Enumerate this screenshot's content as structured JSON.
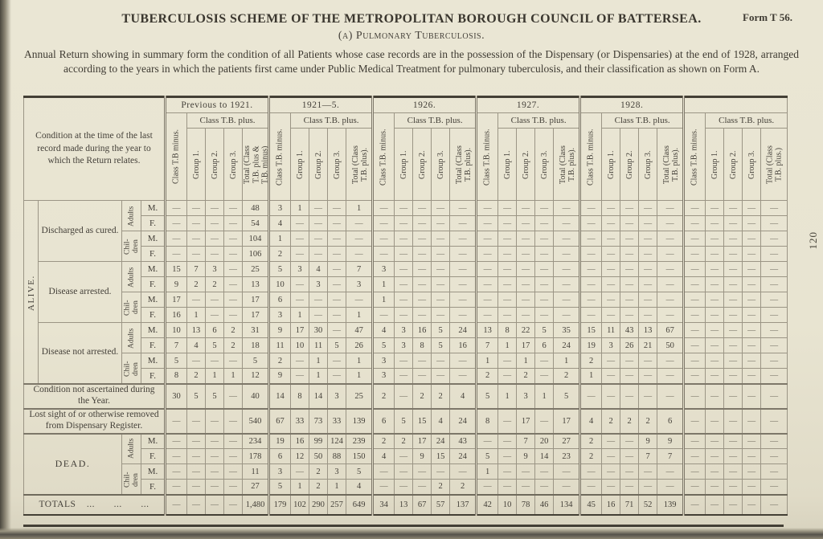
{
  "page": {
    "form_label": "Form T 56.",
    "title": "TUBERCULOSIS SCHEME OF THE METROPOLITAN BOROUGH COUNCIL OF BATTERSEA.",
    "subtitle": "(a) Pulmonary Tuberculosis.",
    "description": "Annual Return showing in summary form the condition of all Patients whose case records are in the possession of the Dispensary (or Dispensaries) at the end of 1928, arranged according to the years in which the patients first came under Public Medical Treatment for pulmonary tuberculosis, and their classification as shown on Form A.",
    "page_number": "120"
  },
  "table": {
    "row_header_title": "Condition at the time of the last record made during the year to which the Return relates.",
    "col_groups": [
      {
        "year": "Previous to 1921.",
        "minus_label": "Class T.B minus.",
        "plus_label": "Class T.B. plus.",
        "sub": [
          "Group 1.",
          "Group 2.",
          "Group 3.",
          "Total (Class\nT.B. plus &\nT.B. minus)"
        ]
      },
      {
        "year": "1921—5.",
        "minus_label": "Class T.B. minus.",
        "plus_label": "Class T.B. plus.",
        "sub": [
          "Group 1.",
          "Group 2.",
          "Group 3.",
          "Total (Class\nT.B. plus)."
        ]
      },
      {
        "year": "1926.",
        "minus_label": "Class T.B. minus.",
        "plus_label": "Class T.B. plus.",
        "sub": [
          "Group 1.",
          "Group 2.",
          "Group 3.",
          "Total (Class\nT.B. plus)."
        ]
      },
      {
        "year": "1927.",
        "minus_label": "Class T.B. minus.",
        "plus_label": "Class T.B. plus.",
        "sub": [
          "Group 1.",
          "Group 2.",
          "Group 3.",
          "Total (Class\nT.B. plus)."
        ]
      },
      {
        "year": "1928.",
        "minus_label": "Class T.B. minus.",
        "plus_label": "Class T.B. plus.",
        "sub": [
          "Group 1.",
          "Group 2.",
          "Group 3.",
          "Total (Class\nT.B. plus)."
        ]
      },
      {
        "year": "",
        "minus_label": "Class T.B. minus.",
        "plus_label": "Class T.B. plus.",
        "sub": [
          "Group 1.",
          "Group 2.",
          "Group 3.",
          "Total (Class\nT.B. plus.)"
        ]
      }
    ],
    "body": [
      {
        "type": "group",
        "section": "ALIVE.",
        "blocks": [
          {
            "condition": "Discharged as cured.",
            "rows": [
              {
                "age": "Adults",
                "sex": "M.",
                "values": [
                  "—",
                  "—",
                  "—",
                  "—",
                  "48",
                  "3",
                  "1",
                  "—",
                  "—",
                  "1",
                  "—",
                  "—",
                  "—",
                  "—",
                  "—",
                  "—",
                  "—",
                  "—",
                  "—",
                  "—",
                  "—",
                  "—",
                  "—",
                  "—",
                  "—",
                  "—",
                  "—",
                  "—",
                  "—",
                  "—"
                ]
              },
              {
                "age": "Adults",
                "sex": "F.",
                "values": [
                  "—",
                  "—",
                  "—",
                  "—",
                  "54",
                  "4",
                  "—",
                  "—",
                  "—",
                  "—",
                  "—",
                  "—",
                  "—",
                  "—",
                  "—",
                  "—",
                  "—",
                  "—",
                  "—",
                  "—",
                  "—",
                  "—",
                  "—",
                  "—",
                  "—",
                  "—",
                  "—",
                  "—",
                  "—",
                  "—"
                ]
              },
              {
                "age": "Chil-\ndren",
                "sex": "M.",
                "values": [
                  "—",
                  "—",
                  "—",
                  "—",
                  "104",
                  "1",
                  "—",
                  "—",
                  "—",
                  "—",
                  "—",
                  "—",
                  "—",
                  "—",
                  "—",
                  "—",
                  "—",
                  "—",
                  "—",
                  "—",
                  "—",
                  "—",
                  "—",
                  "—",
                  "—",
                  "—",
                  "—",
                  "—",
                  "—",
                  "—"
                ]
              },
              {
                "age": "Chil-\ndren",
                "sex": "F.",
                "values": [
                  "—",
                  "—",
                  "—",
                  "—",
                  "106",
                  "2",
                  "—",
                  "—",
                  "—",
                  "—",
                  "—",
                  "—",
                  "—",
                  "—",
                  "—",
                  "—",
                  "—",
                  "—",
                  "—",
                  "—",
                  "—",
                  "—",
                  "—",
                  "—",
                  "—",
                  "—",
                  "—",
                  "—",
                  "—",
                  "—"
                ]
              }
            ]
          },
          {
            "condition": "Disease arrested.",
            "rows": [
              {
                "age": "Adults",
                "sex": "M.",
                "values": [
                  "15",
                  "7",
                  "3",
                  "—",
                  "25",
                  "5",
                  "3",
                  "4",
                  "—",
                  "7",
                  "3",
                  "—",
                  "—",
                  "—",
                  "—",
                  "—",
                  "—",
                  "—",
                  "—",
                  "—",
                  "—",
                  "—",
                  "—",
                  "—",
                  "—",
                  "—",
                  "—",
                  "—",
                  "—",
                  "—"
                ]
              },
              {
                "age": "Adults",
                "sex": "F.",
                "values": [
                  "9",
                  "2",
                  "2",
                  "—",
                  "13",
                  "10",
                  "—",
                  "3",
                  "—",
                  "3",
                  "1",
                  "—",
                  "—",
                  "—",
                  "—",
                  "—",
                  "—",
                  "—",
                  "—",
                  "—",
                  "—",
                  "—",
                  "—",
                  "—",
                  "—",
                  "—",
                  "—",
                  "—",
                  "—",
                  "—"
                ]
              },
              {
                "age": "Chil-\ndren",
                "sex": "M.",
                "values": [
                  "17",
                  "—",
                  "—",
                  "—",
                  "17",
                  "6",
                  "—",
                  "—",
                  "—",
                  "—",
                  "1",
                  "—",
                  "—",
                  "—",
                  "—",
                  "—",
                  "—",
                  "—",
                  "—",
                  "—",
                  "—",
                  "—",
                  "—",
                  "—",
                  "—",
                  "—",
                  "—",
                  "—",
                  "—",
                  "—"
                ]
              },
              {
                "age": "Chil-\ndren",
                "sex": "F.",
                "values": [
                  "16",
                  "1",
                  "—",
                  "—",
                  "17",
                  "3",
                  "1",
                  "—",
                  "—",
                  "1",
                  "—",
                  "—",
                  "—",
                  "—",
                  "—",
                  "—",
                  "—",
                  "—",
                  "—",
                  "—",
                  "—",
                  "—",
                  "—",
                  "—",
                  "—",
                  "—",
                  "—",
                  "—",
                  "—",
                  "—"
                ]
              }
            ]
          },
          {
            "condition": "Disease not arrested.",
            "rows": [
              {
                "age": "Adults",
                "sex": "M.",
                "values": [
                  "10",
                  "13",
                  "6",
                  "2",
                  "31",
                  "9",
                  "17",
                  "30",
                  "—",
                  "47",
                  "4",
                  "3",
                  "16",
                  "5",
                  "24",
                  "13",
                  "8",
                  "22",
                  "5",
                  "35",
                  "15",
                  "11",
                  "43",
                  "13",
                  "67",
                  "—",
                  "—",
                  "—",
                  "—",
                  "—"
                ]
              },
              {
                "age": "Adults",
                "sex": "F.",
                "values": [
                  "7",
                  "4",
                  "5",
                  "2",
                  "18",
                  "11",
                  "10",
                  "11",
                  "5",
                  "26",
                  "5",
                  "3",
                  "8",
                  "5",
                  "16",
                  "7",
                  "1",
                  "17",
                  "6",
                  "24",
                  "19",
                  "3",
                  "26",
                  "21",
                  "50",
                  "—",
                  "—",
                  "—",
                  "—",
                  "—"
                ]
              },
              {
                "age": "Chil-\ndren",
                "sex": "M.",
                "values": [
                  "5",
                  "—",
                  "—",
                  "—",
                  "5",
                  "2",
                  "—",
                  "1",
                  "—",
                  "1",
                  "3",
                  "—",
                  "—",
                  "—",
                  "—",
                  "1",
                  "—",
                  "1",
                  "—",
                  "1",
                  "2",
                  "—",
                  "—",
                  "—",
                  "—",
                  "—",
                  "—",
                  "—",
                  "—",
                  "—"
                ]
              },
              {
                "age": "Chil-\ndren",
                "sex": "F.",
                "values": [
                  "8",
                  "2",
                  "1",
                  "1",
                  "12",
                  "9",
                  "—",
                  "1",
                  "—",
                  "1",
                  "3",
                  "—",
                  "—",
                  "—",
                  "—",
                  "2",
                  "—",
                  "2",
                  "—",
                  "2",
                  "1",
                  "—",
                  "—",
                  "—",
                  "—",
                  "—",
                  "—",
                  "—",
                  "—",
                  "—"
                ]
              }
            ]
          }
        ]
      },
      {
        "type": "row",
        "label": "Condition not ascertained during the Year.",
        "values": [
          "30",
          "5",
          "5",
          "—",
          "40",
          "14",
          "8",
          "14",
          "3",
          "25",
          "2",
          "—",
          "2",
          "2",
          "4",
          "5",
          "1",
          "3",
          "1",
          "5",
          "—",
          "—",
          "—",
          "—",
          "—",
          "—",
          "—",
          "—",
          "—",
          "—"
        ]
      },
      {
        "type": "row",
        "label": "Lost sight of or otherwise removed from Dispensary Register.",
        "values": [
          "—",
          "—",
          "—",
          "—",
          "540",
          "67",
          "33",
          "73",
          "33",
          "139",
          "6",
          "5",
          "15",
          "4",
          "24",
          "8",
          "—",
          "17",
          "—",
          "17",
          "4",
          "2",
          "2",
          "2",
          "6",
          "—",
          "—",
          "—",
          "—",
          "—"
        ]
      },
      {
        "type": "group2",
        "section": "DEAD.",
        "rows": [
          {
            "age": "Adults",
            "sex": "M.",
            "values": [
              "—",
              "—",
              "—",
              "—",
              "234",
              "19",
              "16",
              "99",
              "124",
              "239",
              "2",
              "2",
              "17",
              "24",
              "43",
              "—",
              "—",
              "7",
              "20",
              "27",
              "2",
              "—",
              "—",
              "9",
              "9",
              "—",
              "—",
              "—",
              "—",
              "—"
            ]
          },
          {
            "age": "Adults",
            "sex": "F.",
            "values": [
              "—",
              "—",
              "—",
              "—",
              "178",
              "6",
              "12",
              "50",
              "88",
              "150",
              "4",
              "—",
              "9",
              "15",
              "24",
              "5",
              "—",
              "9",
              "14",
              "23",
              "2",
              "—",
              "—",
              "7",
              "7",
              "—",
              "—",
              "—",
              "—",
              "—"
            ]
          },
          {
            "age": "Chil-\ndren",
            "sex": "M.",
            "values": [
              "—",
              "—",
              "—",
              "—",
              "11",
              "3",
              "—",
              "2",
              "3",
              "5",
              "—",
              "—",
              "—",
              "—",
              "—",
              "1",
              "—",
              "—",
              "—",
              "—",
              "—",
              "—",
              "—",
              "—",
              "—",
              "—",
              "—",
              "—",
              "—",
              "—"
            ]
          },
          {
            "age": "Chil-\ndren",
            "sex": "F.",
            "values": [
              "—",
              "—",
              "—",
              "—",
              "27",
              "5",
              "1",
              "2",
              "1",
              "4",
              "—",
              "—",
              "—",
              "2",
              "2",
              "—",
              "—",
              "—",
              "—",
              "—",
              "—",
              "—",
              "—",
              "—",
              "—",
              "—",
              "—",
              "—",
              "—",
              "—"
            ]
          }
        ]
      },
      {
        "type": "totals",
        "label": "TOTALS    ...       ...       ...",
        "values": [
          "—",
          "—",
          "—",
          "—",
          "1,480",
          "179",
          "102",
          "290",
          "257",
          "649",
          "34",
          "13",
          "67",
          "57",
          "137",
          "42",
          "10",
          "78",
          "46",
          "134",
          "45",
          "16",
          "71",
          "52",
          "139",
          "—",
          "—",
          "—",
          "—",
          "—"
        ]
      }
    ]
  }
}
